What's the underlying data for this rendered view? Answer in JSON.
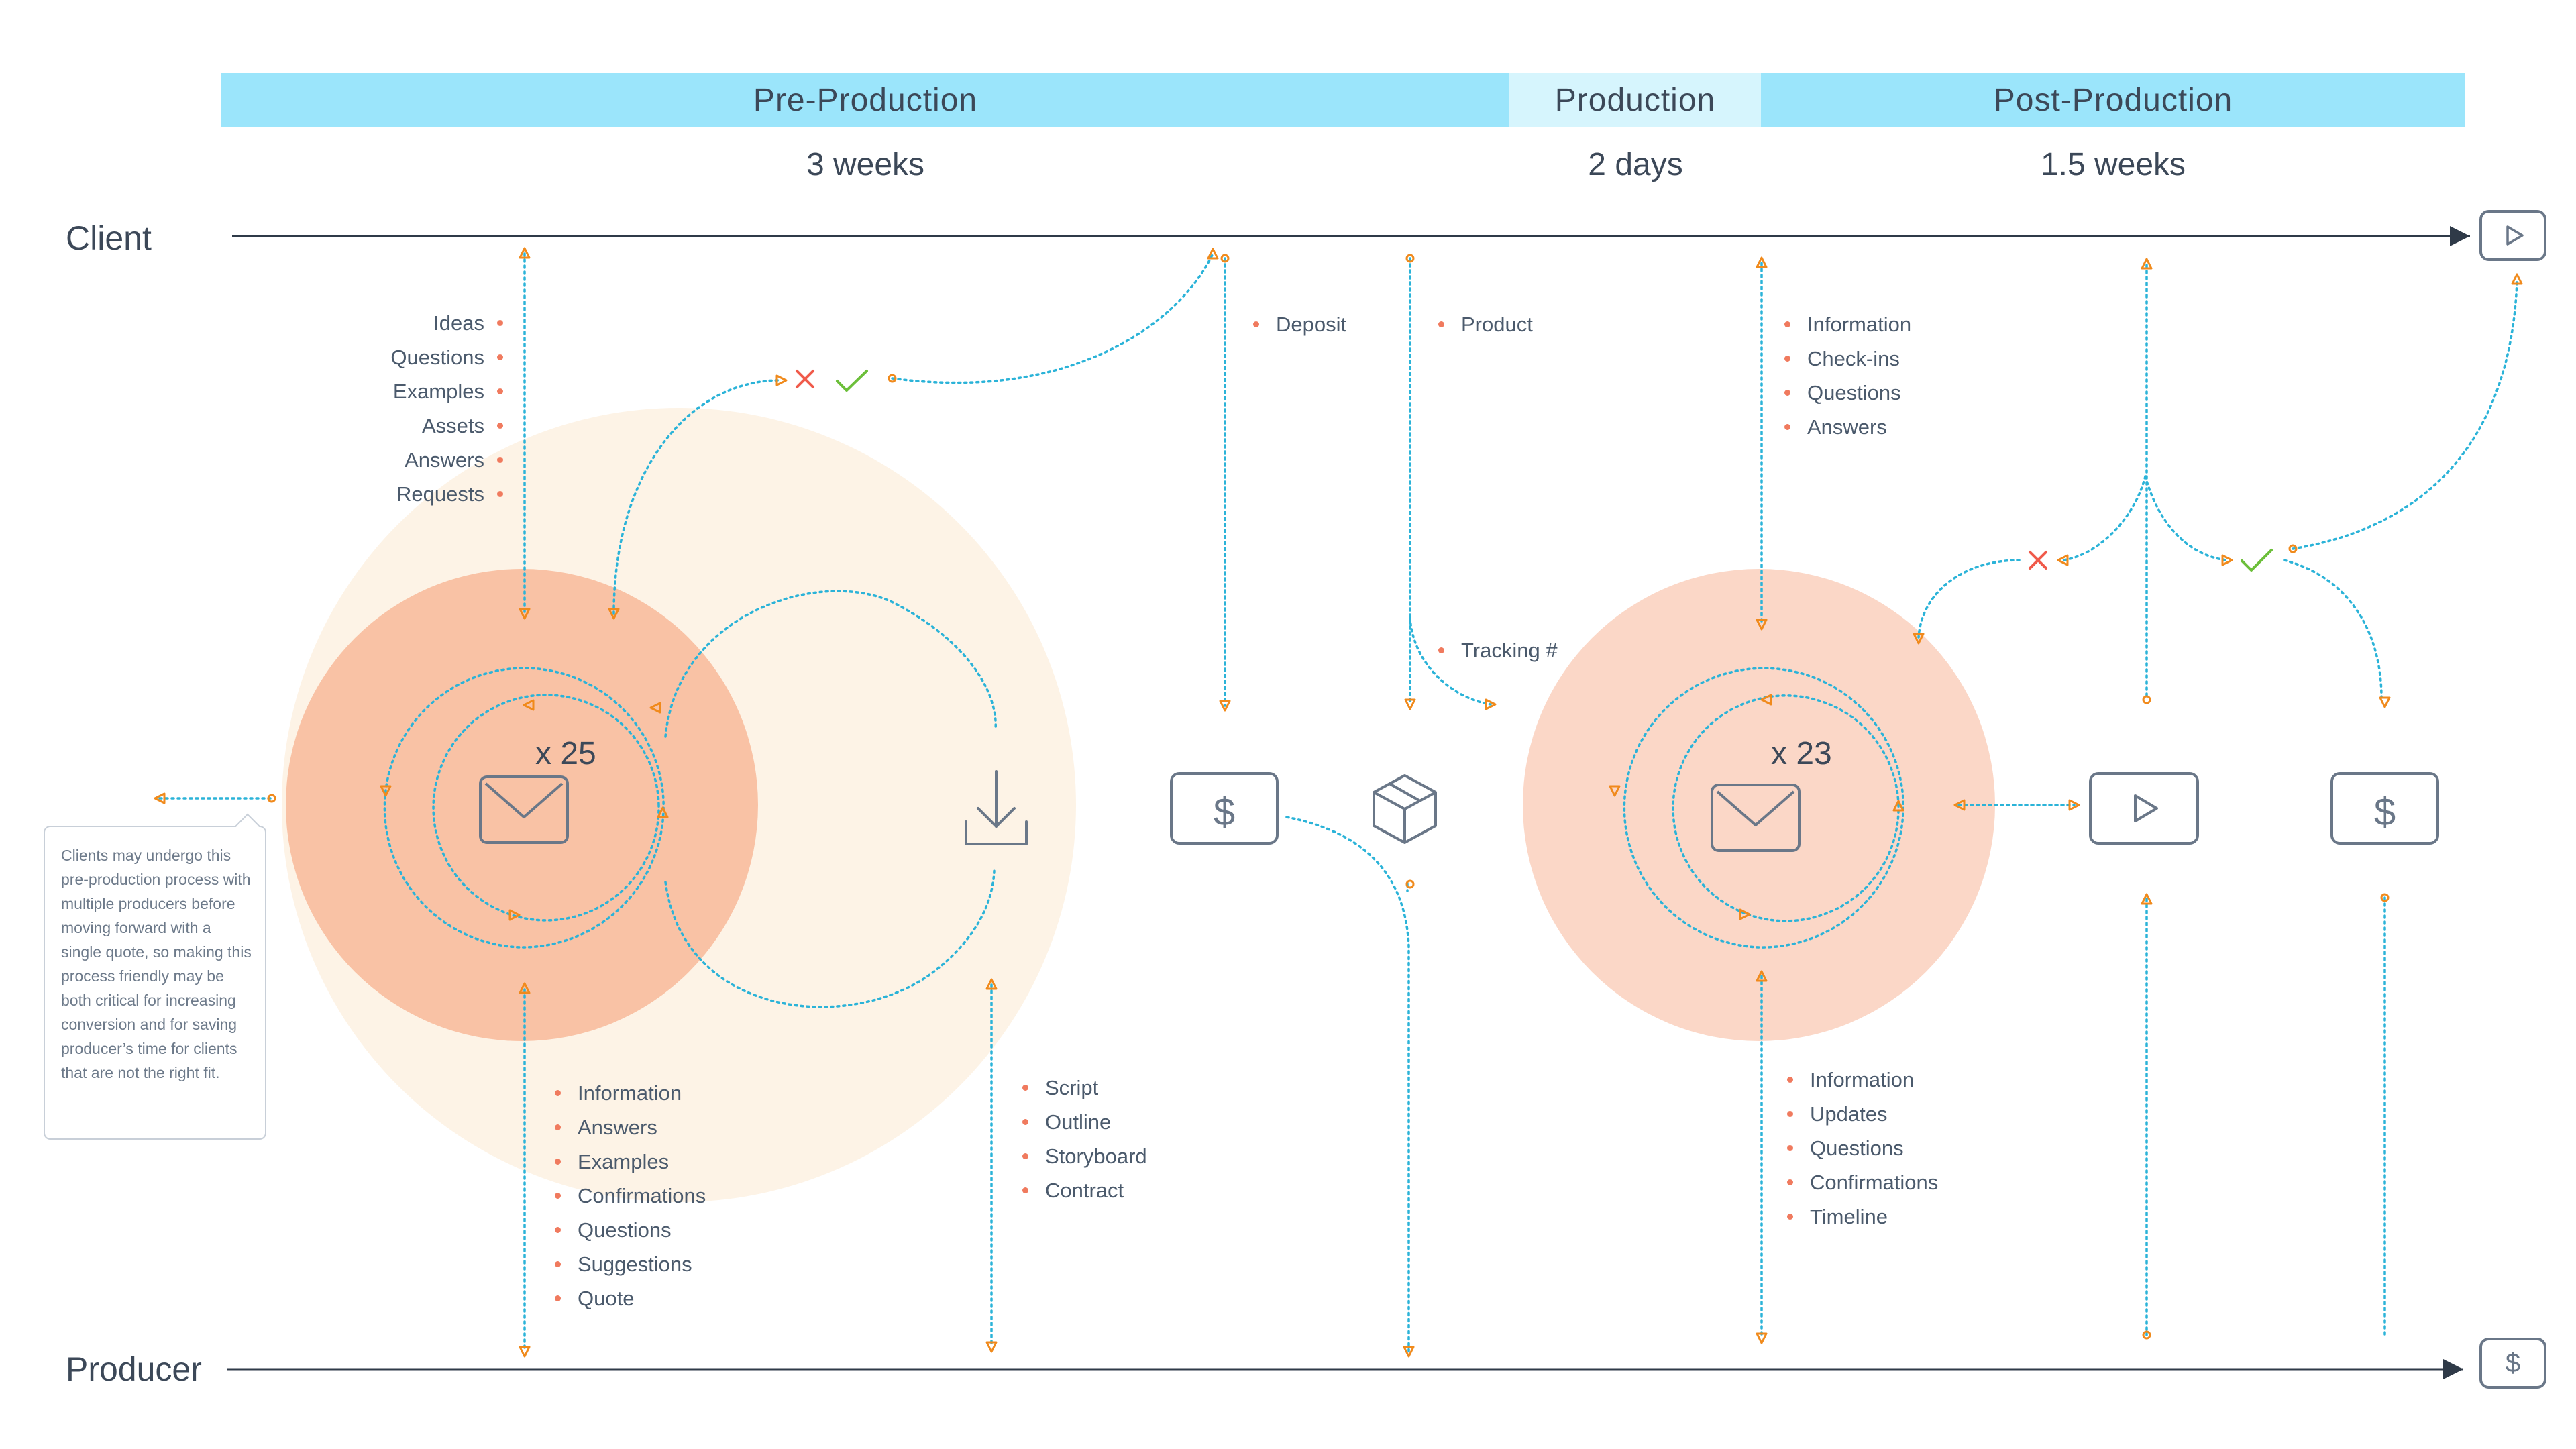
{
  "phases": [
    {
      "name": "Pre-Production",
      "duration": "3 weeks",
      "color": "#9be5fb"
    },
    {
      "name": "Production",
      "duration": "2 days",
      "color": "#d6f5fd"
    },
    {
      "name": "Post-Production",
      "duration": "1.5 weeks",
      "color": "#9be5fb"
    }
  ],
  "lanes": {
    "client": "Client",
    "producer": "Producer"
  },
  "lists": {
    "client_inputs": [
      "Ideas",
      "Questions",
      "Examples",
      "Assets",
      "Answers",
      "Requests"
    ],
    "producer_outputs": [
      "Information",
      "Answers",
      "Examples",
      "Confirmations",
      "Questions",
      "Suggestions",
      "Quote"
    ],
    "deliverables": [
      "Script",
      "Outline",
      "Storyboard",
      "Contract"
    ],
    "deposit": [
      "Deposit"
    ],
    "product": [
      "Product"
    ],
    "tracking": [
      "Tracking #"
    ],
    "post_client": [
      "Information",
      "Check-ins",
      "Questions",
      "Answers"
    ],
    "post_producer": [
      "Information",
      "Updates",
      "Questions",
      "Confirmations",
      "Timeline"
    ]
  },
  "counts": {
    "pre_messages": "x 25",
    "post_messages": "x 23"
  },
  "note": "Clients may undergo this pre-production process with multiple producers before moving forward with a single quote, so making this process friendly may be both critical for increasing conversion and for saving producer’s time for clients that are not the right fit.",
  "icons": [
    "mail-icon",
    "download-icon",
    "dollar-icon",
    "package-icon",
    "play-icon",
    "reject-x-icon",
    "approve-check-icon"
  ],
  "colors": {
    "outer_circle": "#fdf3e6",
    "inner_circle": "#f9c2a5",
    "post_circle": "#fbd7c7",
    "dotted_line": "#2bb3d8",
    "arrow": "#f08a1c",
    "bullet": "#f07a5e",
    "reject": "#f05a4a",
    "approve": "#6cbf3a"
  }
}
